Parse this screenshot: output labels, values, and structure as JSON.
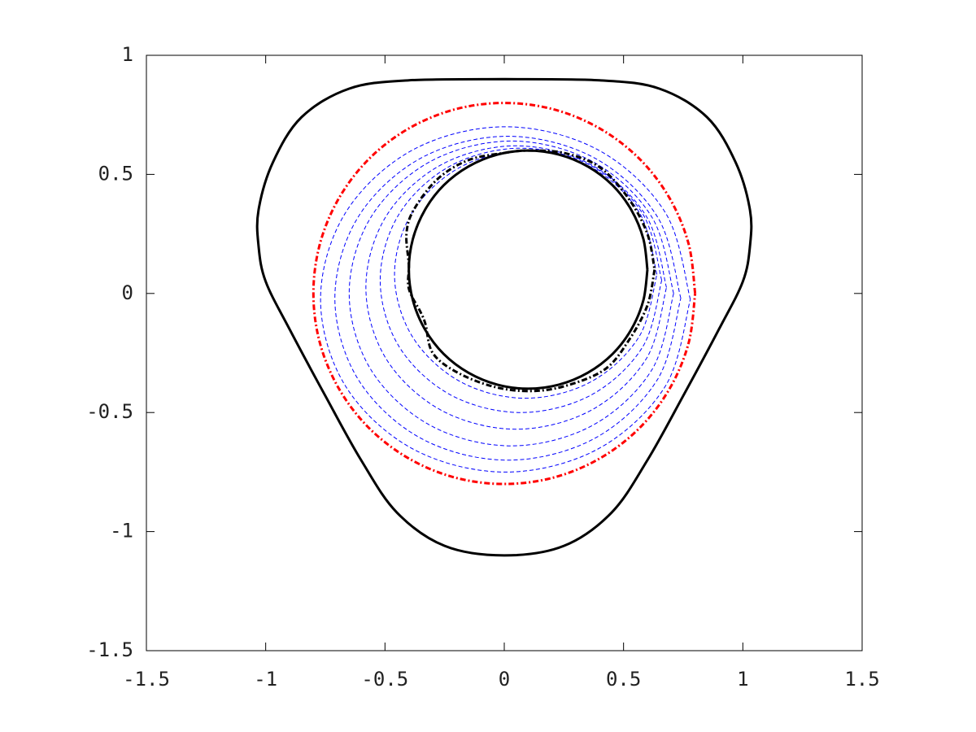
{
  "chart_data": {
    "type": "line",
    "xlim": [
      -1.5,
      1.5
    ],
    "xticks": [
      -1.5,
      -1,
      -0.5,
      0,
      0.5,
      1,
      1.5
    ],
    "ylim": [
      -1.5,
      1
    ],
    "yticks": [
      -1.5,
      -1,
      -0.5,
      0,
      0.5,
      1
    ],
    "series": [
      {
        "color": "#000000",
        "style": "solid",
        "x": [
          0,
          0.4,
          0.65,
          0.85,
          0.97,
          1.03,
          1.03,
          1.0,
          0.9,
          0.75,
          0.6,
          0.45,
          0.25,
          0,
          -0.25,
          -0.45,
          -0.6,
          -0.75,
          -0.9,
          -1.0,
          -1.03,
          -1.03,
          -0.97,
          -0.85,
          -0.65,
          -0.4,
          0
        ],
        "values": [
          0.9,
          0.895,
          0.86,
          0.74,
          0.55,
          0.35,
          0.2,
          0.05,
          -0.15,
          -0.43,
          -0.7,
          -0.92,
          -1.06,
          -1.1,
          -1.06,
          -0.92,
          -0.7,
          -0.43,
          -0.15,
          0.05,
          0.2,
          0.35,
          0.55,
          0.74,
          0.86,
          0.895,
          0.9
        ]
      },
      {
        "color": "#ff0000",
        "style": "dashdot",
        "x": [
          0.8,
          0.773,
          0.693,
          0.566,
          0.4,
          0.207,
          0,
          -0.207,
          -0.4,
          -0.566,
          -0.693,
          -0.773,
          -0.8,
          -0.773,
          -0.693,
          -0.566,
          -0.4,
          -0.207,
          0,
          0.207,
          0.4,
          0.566,
          0.693,
          0.773,
          0.8
        ],
        "values": [
          0,
          0.207,
          0.4,
          0.566,
          0.693,
          0.773,
          0.8,
          0.773,
          0.693,
          0.566,
          0.4,
          0.207,
          0,
          -0.207,
          -0.4,
          -0.566,
          -0.693,
          -0.773,
          -0.8,
          -0.773,
          -0.693,
          -0.566,
          -0.4,
          -0.207,
          0
        ]
      },
      {
        "color": "#0000ff",
        "style": "dash",
        "x": [
          0.78,
          0.676,
          0.393,
          0.005,
          -0.383,
          -0.666,
          -0.77,
          -0.666,
          -0.383,
          0.005,
          0.393,
          0.676,
          0.78
        ],
        "values": [
          -0.025,
          0.338,
          0.603,
          0.7,
          0.603,
          0.338,
          -0.025,
          -0.388,
          -0.653,
          -0.75,
          -0.653,
          -0.388,
          -0.025
        ]
      },
      {
        "color": "#0000ff",
        "style": "dash",
        "x": [
          0.74,
          0.643,
          0.378,
          0.015,
          -0.348,
          -0.613,
          -0.71,
          -0.613,
          -0.348,
          0.015,
          0.378,
          0.643,
          0.74
        ],
        "values": [
          -0.02,
          0.32,
          0.569,
          0.66,
          0.569,
          0.32,
          -0.02,
          -0.36,
          -0.609,
          -0.7,
          -0.609,
          -0.36,
          -0.02
        ]
      },
      {
        "color": "#0000ff",
        "style": "dash",
        "x": [
          0.71,
          0.619,
          0.37,
          0.03,
          -0.31,
          -0.559,
          -0.65,
          -0.559,
          -0.31,
          0.03,
          0.37,
          0.619,
          0.71
        ],
        "values": [
          0,
          0.32,
          0.554,
          0.64,
          0.554,
          0.32,
          0,
          -0.32,
          -0.554,
          -0.64,
          -0.554,
          -0.32,
          0
        ]
      },
      {
        "color": "#0000ff",
        "style": "dash",
        "x": [
          0.68,
          0.596,
          0.365,
          0.05,
          -0.265,
          -0.496,
          -0.58,
          -0.496,
          -0.265,
          0.05,
          0.365,
          0.596,
          0.68
        ],
        "values": [
          0.025,
          0.323,
          0.54,
          0.62,
          0.54,
          0.323,
          0.025,
          -0.273,
          -0.49,
          -0.57,
          -0.49,
          -0.273,
          0.025
        ]
      },
      {
        "color": "#0000ff",
        "style": "dash",
        "x": [
          0.66,
          0.581,
          0.365,
          0.07,
          -0.225,
          -0.441,
          -0.52,
          -0.441,
          -0.225,
          0.07,
          0.365,
          0.581,
          0.66
        ],
        "values": [
          0.055,
          0.333,
          0.536,
          0.61,
          0.536,
          0.333,
          0.055,
          -0.223,
          -0.426,
          -0.5,
          -0.426,
          -0.223,
          0.055
        ]
      },
      {
        "color": "#0000ff",
        "style": "dash",
        "x": [
          0.64,
          0.566,
          0.365,
          0.09,
          -0.185,
          -0.386,
          -0.46,
          -0.386,
          -0.185,
          0.09,
          0.365,
          0.566,
          0.64
        ],
        "values": [
          0.08,
          0.34,
          0.53,
          0.6,
          0.53,
          0.34,
          0.08,
          -0.18,
          -0.37,
          -0.44,
          -0.37,
          -0.18,
          0.08
        ]
      },
      {
        "color": "#000000",
        "style": "solid",
        "x": [
          0.6,
          0.583,
          0.533,
          0.454,
          0.35,
          0.229,
          0.1,
          -0.029,
          -0.15,
          -0.254,
          -0.333,
          -0.383,
          -0.4,
          -0.383,
          -0.333,
          -0.254,
          -0.15,
          -0.029,
          0.1,
          0.229,
          0.35,
          0.454,
          0.533,
          0.583,
          0.6
        ],
        "values": [
          0.1,
          0.229,
          0.35,
          0.454,
          0.533,
          0.583,
          0.6,
          0.583,
          0.533,
          0.454,
          0.35,
          0.229,
          0.1,
          -0.029,
          -0.15,
          -0.254,
          -0.333,
          -0.383,
          -0.4,
          -0.383,
          -0.333,
          -0.254,
          -0.15,
          -0.029,
          0.1
        ]
      },
      {
        "color": "#000000",
        "style": "dashdot",
        "x": [
          0.63,
          0.6,
          0.52,
          0.42,
          0.25,
          0.1,
          -0.05,
          -0.2,
          -0.3,
          -0.33,
          -0.35,
          -0.4,
          -0.4,
          -0.41,
          -0.38,
          -0.28,
          -0.15,
          0,
          0.1,
          0.25,
          0.4,
          0.52,
          0.6,
          0.63
        ],
        "values": [
          0.1,
          -0.05,
          -0.2,
          -0.32,
          -0.39,
          -0.41,
          -0.39,
          -0.33,
          -0.25,
          -0.13,
          -0.08,
          0.02,
          0.12,
          0.25,
          0.35,
          0.48,
          0.56,
          0.59,
          0.6,
          0.59,
          0.53,
          0.4,
          0.25,
          0.1
        ]
      }
    ]
  }
}
